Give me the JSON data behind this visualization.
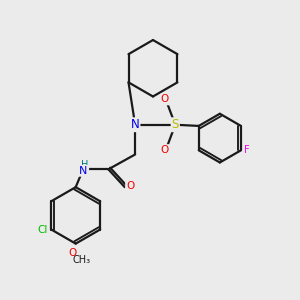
{
  "bg_color": "#ebebeb",
  "bond_color": "#1a1a1a",
  "line_width": 1.6,
  "atom_colors": {
    "N": "#0000ee",
    "O": "#ee0000",
    "S": "#bbbb00",
    "Cl": "#00bb00",
    "F": "#ee00ee",
    "H": "#007777",
    "C": "#1a1a1a"
  }
}
